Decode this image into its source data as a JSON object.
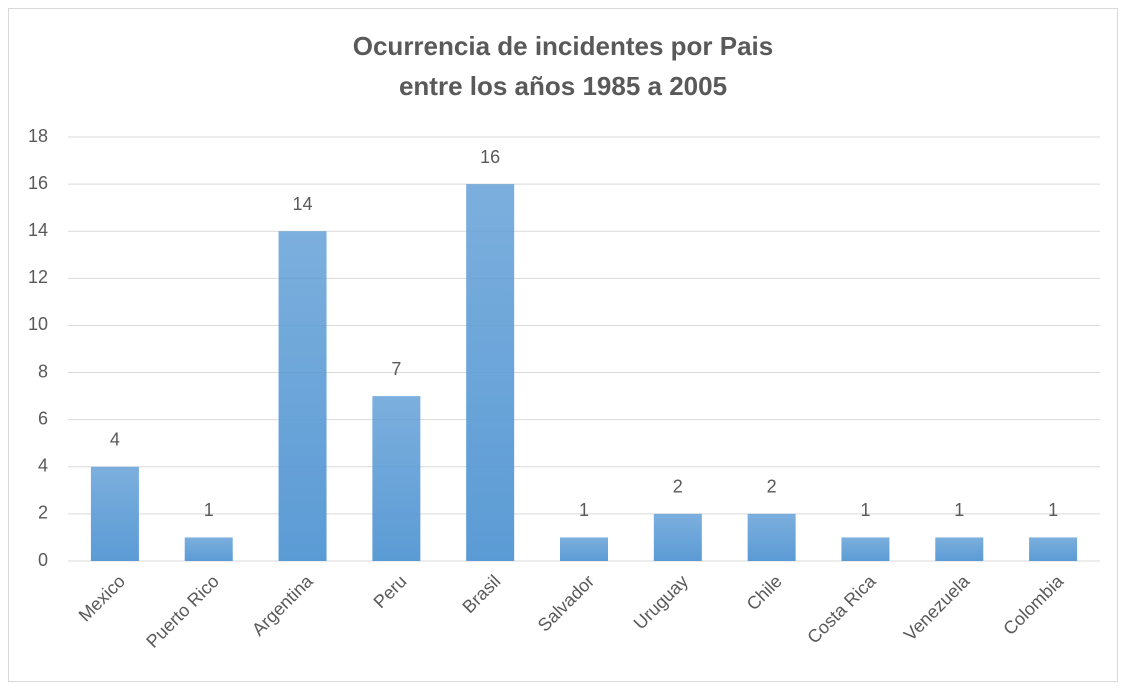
{
  "chart_data": {
    "type": "bar",
    "title": [
      "Ocurrencia de incidentes por Pais",
      "entre los años 1985 a 2005"
    ],
    "categories": [
      "Mexico",
      "Puerto Rico",
      "Argentina",
      "Peru",
      "Brasil",
      "Salvador",
      "Uruguay",
      "Chile",
      "Costa Rica",
      "Venezuela",
      "Colombia"
    ],
    "values": [
      4,
      1,
      14,
      7,
      16,
      1,
      2,
      2,
      1,
      1,
      1
    ],
    "color": "#5b9bd5",
    "ylim": [
      0,
      18
    ],
    "yticks": [
      0,
      2,
      4,
      6,
      8,
      10,
      12,
      14,
      16,
      18
    ],
    "grid": true
  }
}
